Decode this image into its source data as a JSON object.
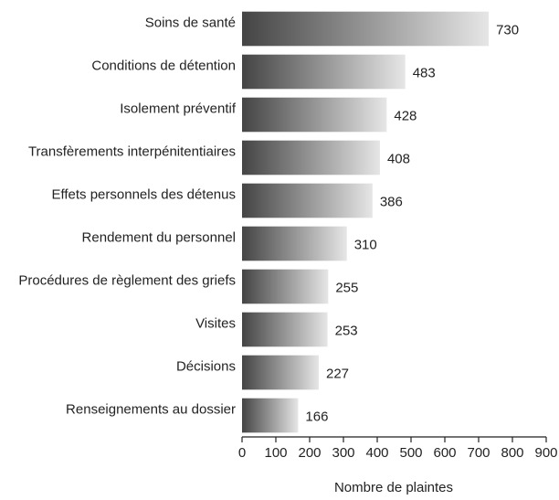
{
  "chart_data": {
    "type": "barh",
    "categories": [
      "Soins de santé",
      "Conditions de détention",
      "Isolement préventif",
      "Transfèrements interpénitentiaires",
      "Effets personnels des détenus",
      "Rendement du personnel",
      "Procédures de règlement des griefs",
      "Visites",
      "Décisions",
      "Renseignements au dossier"
    ],
    "values": [
      730,
      483,
      428,
      408,
      386,
      310,
      255,
      253,
      227,
      166
    ],
    "color": [
      "#444444",
      "#e6e6e6"
    ],
    "xlim": [
      0,
      900
    ],
    "xticks": [
      0,
      100,
      200,
      300,
      400,
      500,
      600,
      700,
      800,
      900
    ],
    "xlabel": "Nombre de plaintes",
    "grid": false
  }
}
